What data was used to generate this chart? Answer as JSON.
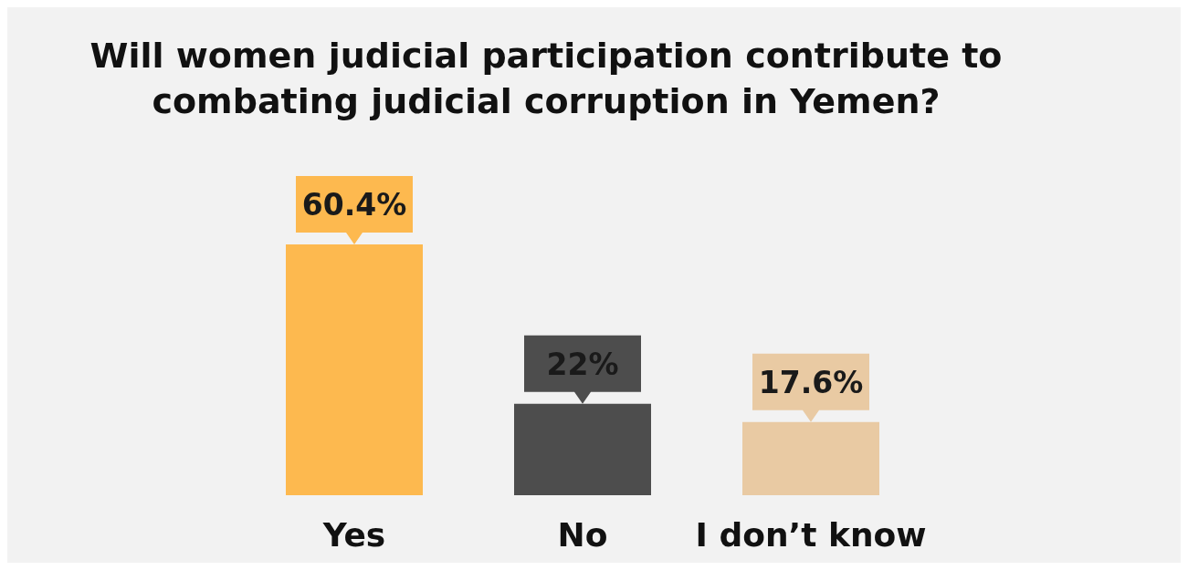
{
  "chart_data": {
    "type": "bar",
    "title": "Will women judicial participation contribute to combating judicial corruption in Yemen?",
    "categories": [
      "Yes",
      "No",
      "I don’t know"
    ],
    "values": [
      60.4,
      22,
      17.6
    ],
    "colors": [
      "#fdb94f",
      "#4d4d4d",
      "#e9caa3"
    ],
    "value_labels": [
      "60.4%",
      "22%",
      "17.6%"
    ]
  }
}
